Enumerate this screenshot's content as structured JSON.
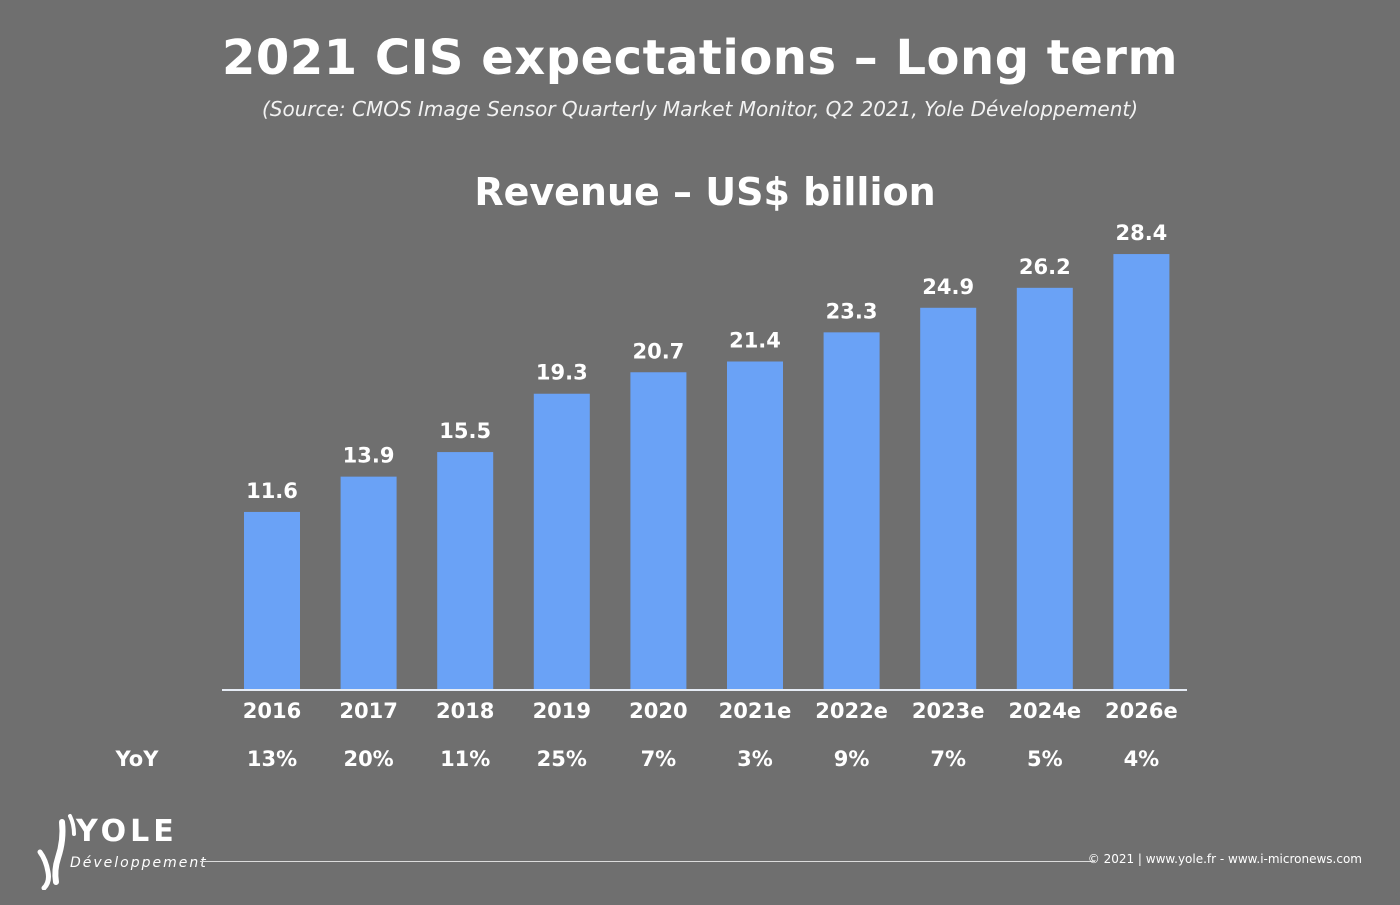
{
  "header": {
    "title": "2021 CIS expectations – Long term",
    "source": "(Source: CMOS Image Sensor Quarterly Market Monitor, Q2 2021, Yole Développement)"
  },
  "chart_data": {
    "type": "bar",
    "title": "Revenue – US$ billion",
    "xlabel": "",
    "ylabel": "",
    "ylim": [
      0,
      30
    ],
    "grid": false,
    "bar_color": "#6aa2f6",
    "categories": [
      "2016",
      "2017",
      "2018",
      "2019",
      "2020",
      "2021e",
      "2022e",
      "2023e",
      "2024e",
      "2026e"
    ],
    "values": [
      11.6,
      13.9,
      15.5,
      19.3,
      20.7,
      21.4,
      23.3,
      24.9,
      26.2,
      28.4
    ],
    "value_labels": [
      "11.6",
      "13.9",
      "15.5",
      "19.3",
      "20.7",
      "21.4",
      "23.3",
      "24.9",
      "26.2",
      "28.4"
    ],
    "yoy_label": "YoY",
    "yoy": [
      "13%",
      "20%",
      "11%",
      "25%",
      "7%",
      "3%",
      "9%",
      "7%",
      "5%",
      "4%"
    ]
  },
  "logo": {
    "name": "YOLE",
    "sub": "Développement"
  },
  "footer": {
    "text": "© 2021 | www.yole.fr - www.i-micronews.com"
  }
}
